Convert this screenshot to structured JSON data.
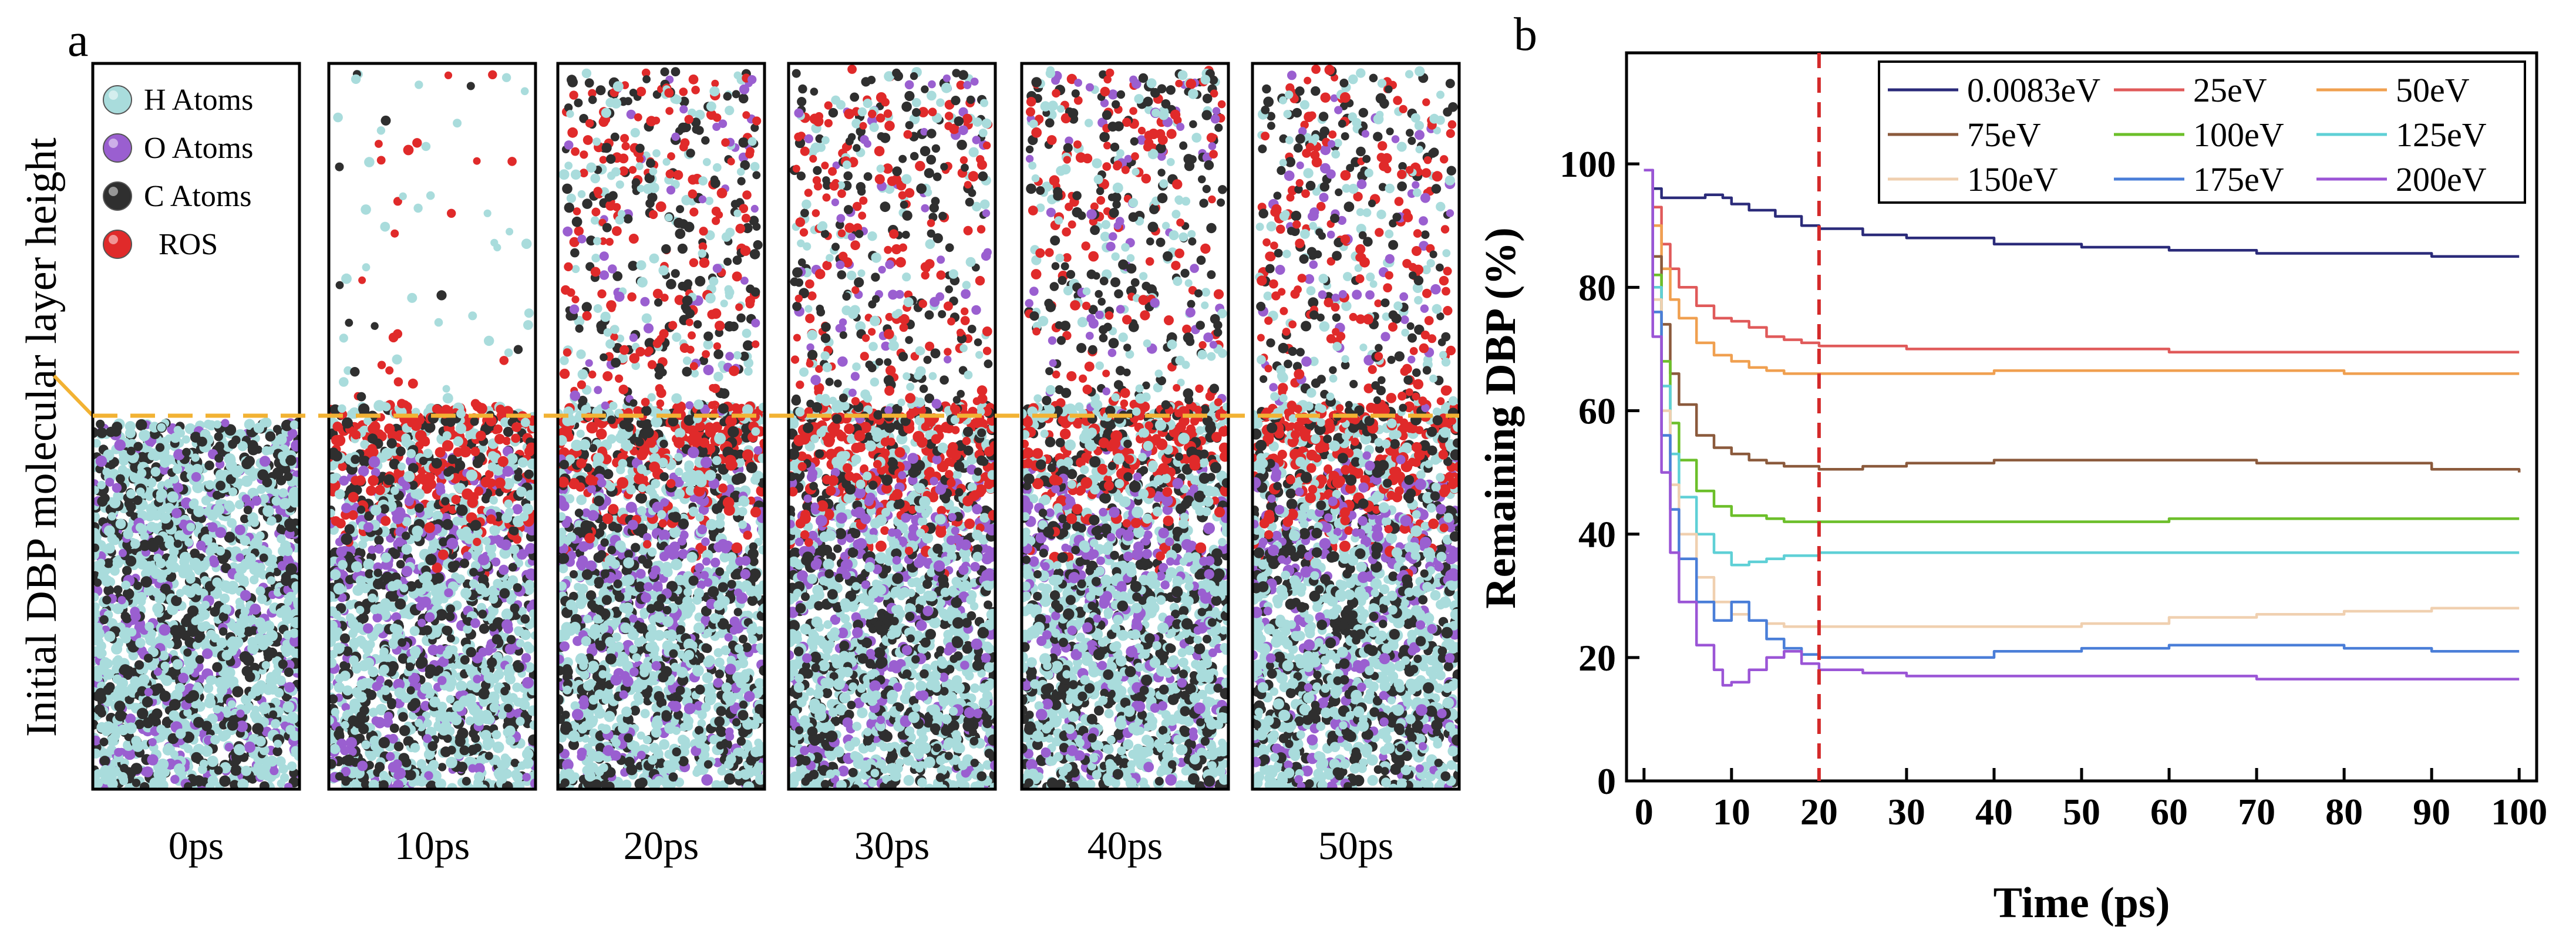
{
  "panel_a": {
    "label": "a",
    "ylabel": "Initial DBP molecular layer height",
    "legend": [
      {
        "name": "H Atoms",
        "color": "#a9dcdc"
      },
      {
        "name": "O Atoms",
        "color": "#9a5fd0"
      },
      {
        "name": "C Atoms",
        "color": "#2f2f2f"
      },
      {
        "name": "ROS",
        "color": "#e02a2a"
      }
    ],
    "frames": [
      "0ps",
      "10ps",
      "20ps",
      "30ps",
      "40ps",
      "50ps"
    ],
    "colors": {
      "dashed_line": "#f2b233",
      "box": "#000000"
    }
  },
  "chart_data": {
    "type": "line",
    "label": "b",
    "title": "",
    "xlabel": "Time (ps)",
    "ylabel": "Remaining DBP (%)",
    "xlim": [
      -2,
      102
    ],
    "ylim": [
      0,
      118
    ],
    "xticks": [
      0,
      10,
      20,
      30,
      40,
      50,
      60,
      70,
      80,
      90,
      100
    ],
    "yticks": [
      0,
      20,
      40,
      60,
      80,
      100
    ],
    "vline": {
      "x": 20,
      "color": "#d42a2a"
    },
    "legend_location": "top-right",
    "series": [
      {
        "name": "0.0083eV",
        "color": "#2b2b7a",
        "x": [
          0,
          1,
          2,
          5,
          7,
          9,
          10,
          12,
          15,
          18,
          20,
          25,
          30,
          40,
          50,
          60,
          70,
          80,
          90,
          100
        ],
        "y": [
          99,
          96,
          94.5,
          94.5,
          95,
          94.5,
          93.5,
          92.5,
          91.5,
          90,
          89.5,
          88.5,
          88,
          87,
          86.5,
          86,
          85.5,
          85.5,
          85,
          85
        ]
      },
      {
        "name": "25eV",
        "color": "#e05a5a",
        "x": [
          0,
          1,
          2,
          3,
          4,
          6,
          8,
          10,
          12,
          14,
          16,
          18,
          20,
          25,
          30,
          40,
          50,
          60,
          70,
          80,
          90,
          100
        ],
        "y": [
          99,
          93,
          87,
          83,
          80,
          77,
          75,
          74.5,
          73.5,
          72,
          71.5,
          71,
          70.5,
          70.5,
          70,
          70,
          70,
          69.5,
          69.5,
          69.5,
          69.5,
          69.5
        ]
      },
      {
        "name": "50eV",
        "color": "#f0a050",
        "x": [
          0,
          1,
          2,
          3,
          4,
          6,
          8,
          10,
          12,
          14,
          16,
          18,
          20,
          25,
          30,
          40,
          50,
          60,
          70,
          80,
          90,
          100
        ],
        "y": [
          99,
          90,
          83,
          78,
          75,
          71,
          69,
          68,
          67,
          66.5,
          66,
          66,
          66,
          66,
          66,
          66.5,
          66.5,
          66.5,
          66.5,
          66,
          66,
          66
        ]
      },
      {
        "name": "75eV",
        "color": "#8b5a3c",
        "x": [
          0,
          1,
          2,
          3,
          4,
          6,
          8,
          10,
          12,
          14,
          16,
          18,
          20,
          25,
          30,
          40,
          50,
          60,
          70,
          80,
          90,
          100
        ],
        "y": [
          99,
          85,
          74,
          66,
          61,
          56,
          54,
          53,
          52,
          51.5,
          51,
          51,
          50.5,
          51,
          51.5,
          52,
          52,
          52,
          51.5,
          51.5,
          50.5,
          50
        ]
      },
      {
        "name": "100eV",
        "color": "#6cbf2a",
        "x": [
          0,
          1,
          2,
          3,
          4,
          6,
          8,
          10,
          12,
          14,
          16,
          18,
          20,
          25,
          30,
          40,
          50,
          60,
          70,
          80,
          90,
          100
        ],
        "y": [
          99,
          82,
          68,
          58,
          52,
          47,
          44.5,
          43,
          43,
          42.5,
          42,
          42,
          42,
          42,
          42,
          42,
          42,
          42.5,
          42.5,
          42.5,
          42.5,
          42.5
        ]
      },
      {
        "name": "125eV",
        "color": "#5fd0d6",
        "x": [
          0,
          1,
          2,
          3,
          4,
          6,
          8,
          10,
          12,
          14,
          16,
          18,
          20,
          25,
          30,
          40,
          50,
          60,
          70,
          80,
          90,
          100
        ],
        "y": [
          99,
          80,
          64,
          53,
          46,
          40,
          37,
          35,
          35.5,
          36,
          36.5,
          36.5,
          37,
          37,
          37,
          37,
          37,
          37,
          37,
          37,
          37,
          37
        ]
      },
      {
        "name": "150eV",
        "color": "#f0d0b0",
        "x": [
          0,
          1,
          2,
          3,
          4,
          6,
          8,
          10,
          12,
          14,
          16,
          18,
          20,
          25,
          30,
          40,
          50,
          60,
          70,
          80,
          90,
          100
        ],
        "y": [
          99,
          78,
          60,
          48,
          40,
          33,
          29,
          27,
          26,
          25.5,
          25,
          25,
          25,
          25,
          25,
          25,
          25.5,
          26.5,
          27,
          27.5,
          28,
          28
        ]
      },
      {
        "name": "175eV",
        "color": "#4a7ed8",
        "x": [
          0,
          1,
          2,
          3,
          4,
          6,
          8,
          10,
          12,
          14,
          16,
          18,
          20,
          25,
          30,
          40,
          50,
          60,
          70,
          80,
          90,
          100
        ],
        "y": [
          99,
          76,
          56,
          44,
          36,
          29,
          26,
          29,
          26,
          23,
          21.5,
          20.5,
          20,
          20,
          20,
          21,
          21.5,
          22,
          22,
          21.5,
          21,
          21
        ]
      },
      {
        "name": "200eV",
        "color": "#9b55d6",
        "x": [
          0,
          1,
          2,
          3,
          4,
          6,
          8,
          9,
          10,
          12,
          14,
          16,
          18,
          20,
          25,
          30,
          40,
          50,
          60,
          70,
          80,
          90,
          100
        ],
        "y": [
          99,
          72,
          50,
          37,
          29,
          22,
          18,
          15.5,
          16,
          18,
          20,
          21,
          19,
          18,
          17.5,
          17,
          17,
          17,
          17,
          16.5,
          16.5,
          16.5,
          16.5
        ]
      }
    ]
  }
}
